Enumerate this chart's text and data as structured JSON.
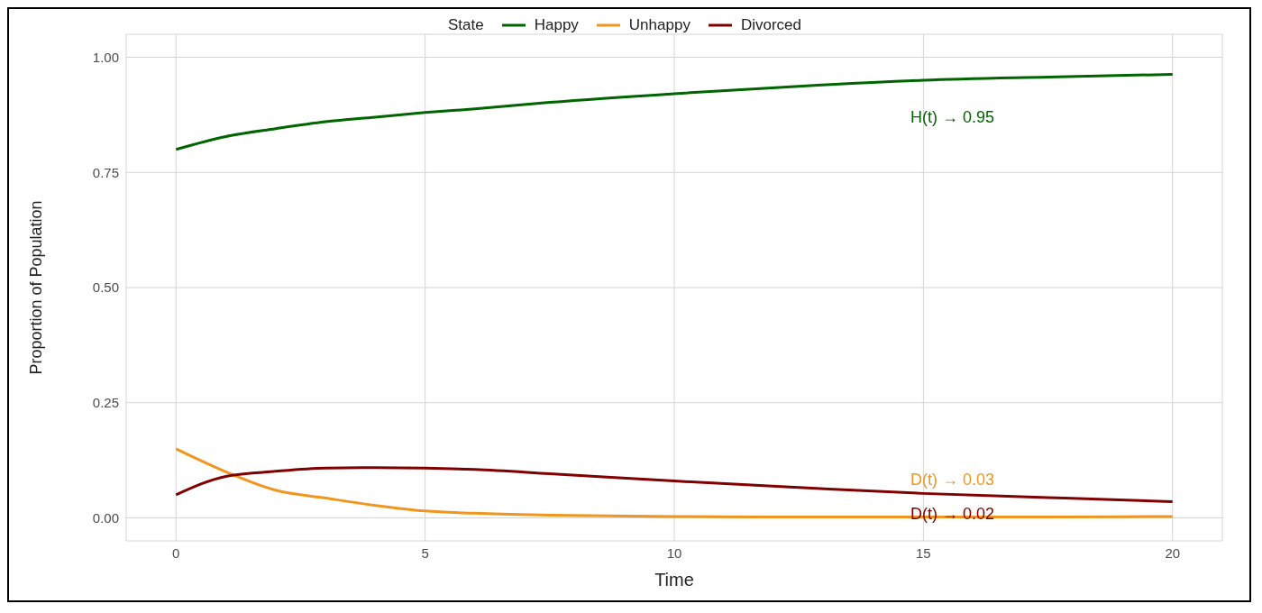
{
  "chart_data": {
    "type": "line",
    "xlabel": "Time",
    "ylabel": "Proportion of Population",
    "legend_title": "State",
    "legend": "top",
    "x": [
      0,
      1,
      2,
      3,
      4,
      5,
      6,
      7.5,
      10,
      12.5,
      15,
      17.5,
      20
    ],
    "series": [
      {
        "name": "Happy",
        "color": "#006400",
        "values": [
          0.8,
          0.828,
          0.845,
          0.86,
          0.87,
          0.88,
          0.888,
          0.902,
          0.921,
          0.937,
          0.95,
          0.957,
          0.963
        ]
      },
      {
        "name": "Unhappy",
        "color": "#f0961e",
        "values": [
          0.15,
          0.1,
          0.06,
          0.043,
          0.027,
          0.015,
          0.01,
          0.006,
          0.003,
          0.002,
          0.002,
          0.002,
          0.003
        ]
      },
      {
        "name": "Divorced",
        "color": "#800000",
        "values": [
          0.05,
          0.09,
          0.101,
          0.108,
          0.109,
          0.108,
          0.105,
          0.096,
          0.08,
          0.066,
          0.053,
          0.044,
          0.035
        ]
      }
    ],
    "annotations": [
      "H(t) → 0.95",
      "D(t) → 0.03",
      "D(t) → 0.02"
    ],
    "xlim": [
      -1,
      21
    ],
    "xticks": [
      0,
      5,
      10,
      15,
      20
    ],
    "ylim": [
      -0.05,
      1.05
    ],
    "yticks": [
      {
        "value": 0,
        "label": "0.00"
      },
      {
        "value": 0.25,
        "label": "0.25"
      },
      {
        "value": 0.5,
        "label": "0.50"
      },
      {
        "value": 0.75,
        "label": "0.75"
      },
      {
        "value": 1,
        "label": "1.00"
      }
    ],
    "grid": true,
    "marker": "none",
    "line_style": "solid"
  }
}
